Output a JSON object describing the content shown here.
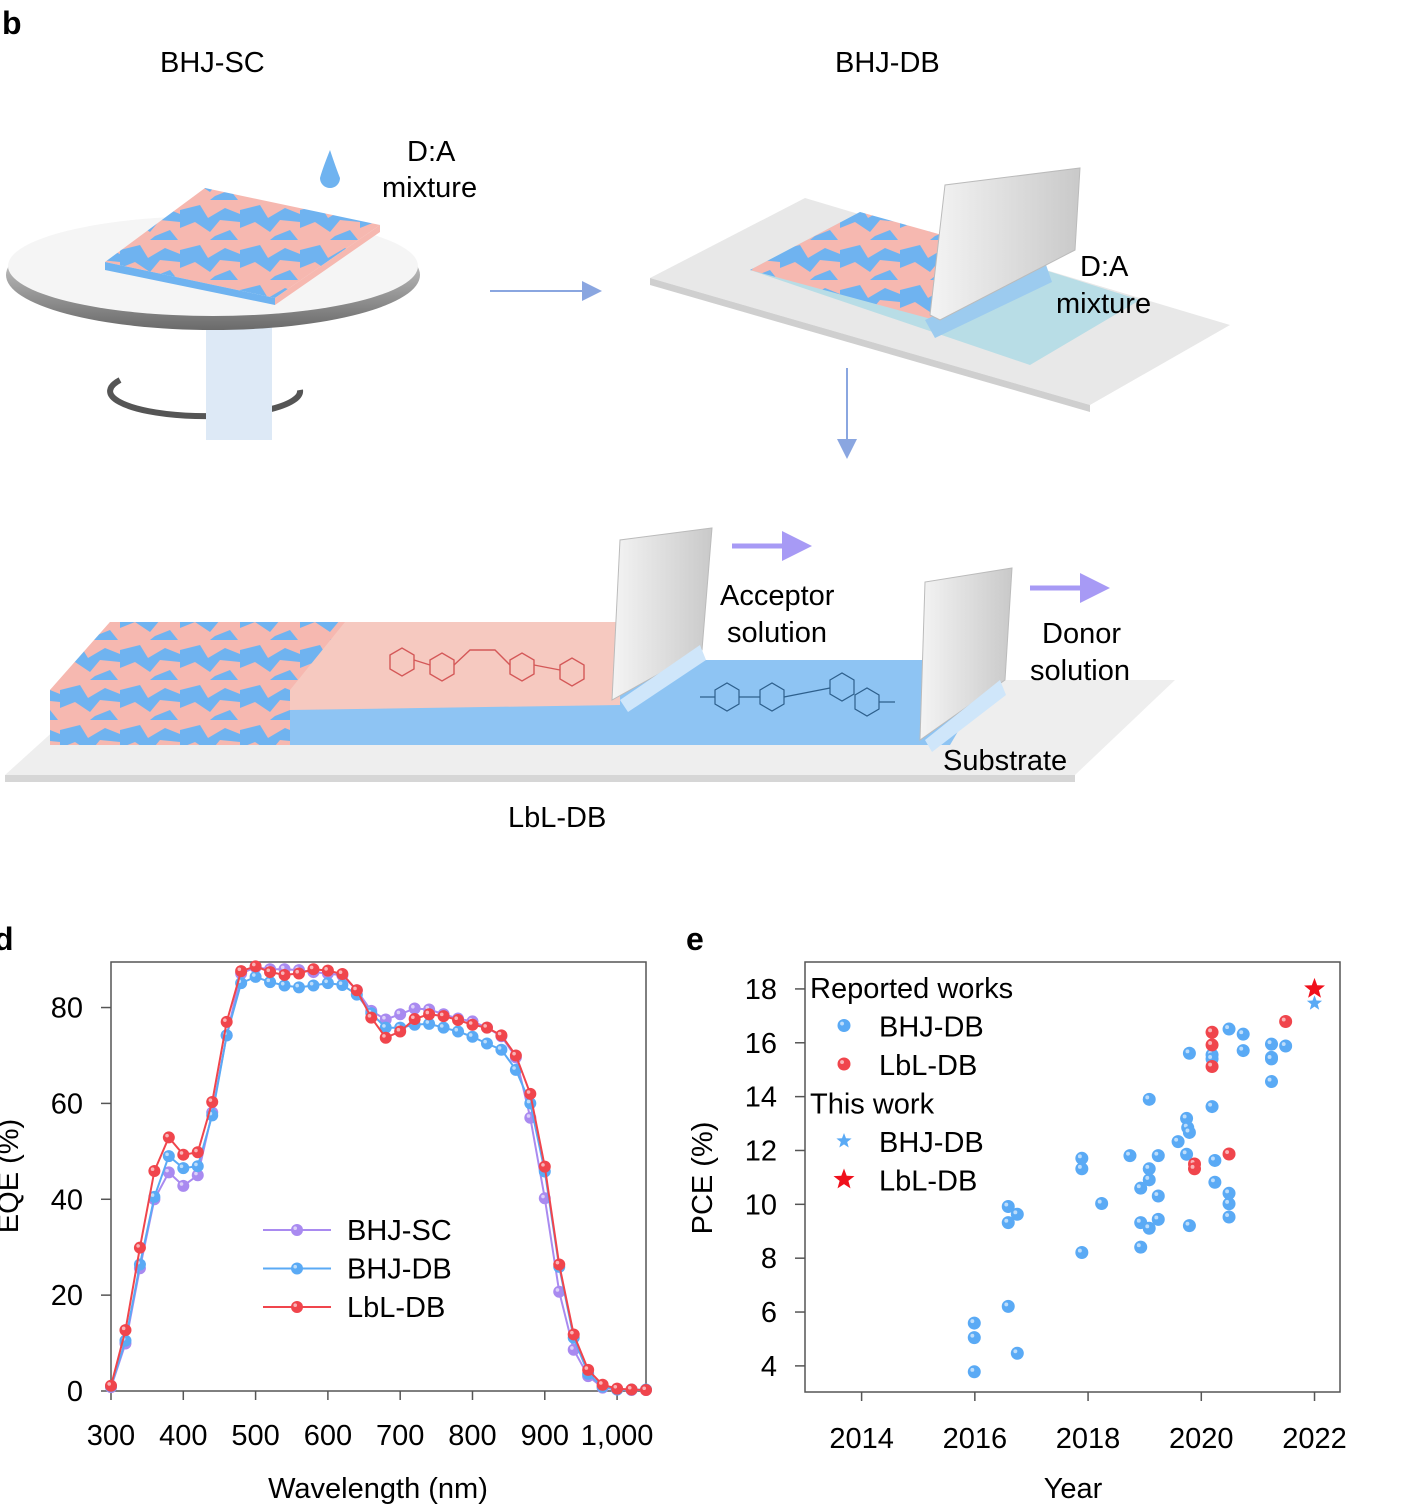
{
  "panels": {
    "b": "b",
    "d": "d",
    "e": "e"
  },
  "diagram": {
    "bhj_sc_title": "BHJ-SC",
    "bhj_db_title": "BHJ-DB",
    "lbl_db_title": "LbL-DB",
    "mixture_1": [
      "D:A",
      "mixture"
    ],
    "mixture_2": [
      "D:A",
      "mixture"
    ],
    "acceptor": [
      "Acceptor",
      "solution"
    ],
    "donor": [
      "Donor",
      "solution"
    ],
    "substrate": "Substrate",
    "colors": {
      "donor": "#6fb3f0",
      "acceptor": "#f6b8b0",
      "arrow": "#8aa6e0",
      "arrow_purple": "#a79af5"
    }
  },
  "chart_data": [
    {
      "type": "line",
      "panel": "d",
      "xlabel": "Wavelength (nm)",
      "ylabel": "EQE (%)",
      "xlim": [
        300,
        1040
      ],
      "ylim": [
        0,
        89.5
      ],
      "xticks": [
        300,
        400,
        500,
        600,
        700,
        800,
        900,
        1000
      ],
      "xtick_labels": [
        "300",
        "400",
        "500",
        "600",
        "700",
        "800",
        "900",
        "1,000"
      ],
      "yticks": [
        0,
        20,
        40,
        60,
        80
      ],
      "ytick_labels": [
        "0",
        "20",
        "40",
        "60",
        "80"
      ],
      "grid": false,
      "legend": "center-bottom",
      "x": [
        300,
        320,
        340,
        360,
        380,
        400,
        420,
        440,
        460,
        480,
        500,
        520,
        540,
        560,
        580,
        600,
        620,
        640,
        660,
        680,
        700,
        720,
        740,
        760,
        780,
        800,
        820,
        840,
        860,
        880,
        900,
        920,
        940,
        960,
        980,
        1000,
        1020,
        1040
      ],
      "series": [
        {
          "name": "BHJ-SC",
          "color": "#a98af0",
          "values": [
            0.8,
            9.9,
            25.6,
            40.0,
            45.6,
            42.8,
            45.0,
            58.1,
            74.2,
            87.1,
            88.4,
            88.0,
            88.0,
            87.8,
            87.4,
            87.1,
            86.7,
            83.6,
            79.3,
            77.5,
            78.6,
            79.8,
            79.6,
            78.6,
            77.7,
            77.1,
            75.8,
            74.0,
            69.6,
            57.0,
            40.2,
            20.7,
            8.6,
            3.1,
            0.7,
            0.3,
            0.2,
            0.2
          ]
        },
        {
          "name": "BHJ-DB",
          "color": "#5aaaf5",
          "values": [
            1.0,
            10.5,
            26.4,
            40.5,
            49.0,
            46.5,
            46.9,
            57.5,
            74.2,
            85.1,
            86.4,
            85.3,
            84.6,
            84.2,
            84.6,
            85.1,
            84.7,
            82.7,
            78.8,
            75.8,
            75.8,
            76.4,
            76.6,
            75.8,
            75.0,
            73.9,
            72.5,
            71.2,
            67.0,
            60.0,
            45.8,
            25.9,
            11.1,
            3.6,
            0.9,
            0.3,
            0.3,
            0.3
          ]
        },
        {
          "name": "LbL-DB",
          "color": "#f0454c",
          "values": [
            1.1,
            12.7,
            29.9,
            45.9,
            52.9,
            49.3,
            49.8,
            60.3,
            77.0,
            87.6,
            88.6,
            87.4,
            86.8,
            87.1,
            88.0,
            87.7,
            87.0,
            83.6,
            77.9,
            73.7,
            75.0,
            77.6,
            78.6,
            78.2,
            77.4,
            76.4,
            75.8,
            74.2,
            70.0,
            62.0,
            46.8,
            26.4,
            11.8,
            4.4,
            1.3,
            0.5,
            0.3,
            0.2
          ]
        }
      ]
    },
    {
      "type": "scatter",
      "panel": "e",
      "xlabel": "Year",
      "ylabel": "PCE (%)",
      "xlim": [
        2013,
        2022.45
      ],
      "ylim": [
        3.03,
        19.0
      ],
      "xticks": [
        2014,
        2016,
        2018,
        2020,
        2022
      ],
      "xtick_labels": [
        "2014",
        "2016",
        "2018",
        "2020",
        "2022"
      ],
      "yticks": [
        4,
        6,
        8,
        10,
        12,
        14,
        16,
        18
      ],
      "ytick_labels": [
        "4",
        "6",
        "8",
        "10",
        "12",
        "14",
        "16",
        "18"
      ],
      "grid": false,
      "legend": "top-left",
      "legend_groups": [
        {
          "title": "Reported works",
          "entries": [
            {
              "name": "BHJ-DB",
              "marker": "circle",
              "color": "#5aaaf5"
            },
            {
              "name": "LbL-DB",
              "marker": "circle",
              "color": "#f0454c"
            }
          ]
        },
        {
          "title": "This work",
          "entries": [
            {
              "name": "BHJ-DB",
              "marker": "star",
              "color": "#5aaaf5"
            },
            {
              "name": "LbL-DB",
              "marker": "star",
              "color": "#f0101c"
            }
          ]
        }
      ],
      "series": [
        {
          "name": "Reported works BHJ-DB",
          "marker": "circle",
          "color": "#5aaaf5",
          "points": [
            [
              2020.49,
              16.51
            ],
            [
              2020.74,
              16.32
            ],
            [
              2019.79,
              15.61
            ],
            [
              2020.19,
              15.55
            ],
            [
              2020.19,
              15.4
            ],
            [
              2020.74,
              15.71
            ],
            [
              2021.24,
              15.95
            ],
            [
              2021.24,
              15.46
            ],
            [
              2021.24,
              15.4
            ],
            [
              2021.49,
              15.88
            ],
            [
              2021.24,
              14.56
            ],
            [
              2019.08,
              13.9
            ],
            [
              2020.19,
              13.63
            ],
            [
              2019.74,
              13.19
            ],
            [
              2019.76,
              12.85
            ],
            [
              2019.79,
              12.67
            ],
            [
              2019.59,
              12.33
            ],
            [
              2019.74,
              11.86
            ],
            [
              2020.24,
              11.63
            ],
            [
              2018.74,
              11.81
            ],
            [
              2019.24,
              11.81
            ],
            [
              2017.89,
              11.71
            ],
            [
              2017.89,
              11.32
            ],
            [
              2019.08,
              11.32
            ],
            [
              2019.08,
              10.91
            ],
            [
              2018.93,
              10.6
            ],
            [
              2020.24,
              10.82
            ],
            [
              2019.24,
              10.31
            ],
            [
              2018.24,
              10.03
            ],
            [
              2020.49,
              10.41
            ],
            [
              2020.49,
              10.02
            ],
            [
              2020.49,
              9.53
            ],
            [
              2016.59,
              9.92
            ],
            [
              2016.75,
              9.63
            ],
            [
              2016.59,
              9.32
            ],
            [
              2018.93,
              9.32
            ],
            [
              2019.08,
              9.11
            ],
            [
              2019.24,
              9.44
            ],
            [
              2019.79,
              9.21
            ],
            [
              2017.89,
              8.21
            ],
            [
              2018.93,
              8.41
            ],
            [
              2016.59,
              6.21
            ],
            [
              2015.99,
              5.59
            ],
            [
              2015.99,
              5.05
            ],
            [
              2016.75,
              4.47
            ],
            [
              2015.99,
              3.78
            ]
          ]
        },
        {
          "name": "Reported works LbL-DB",
          "marker": "circle",
          "color": "#f0454c",
          "points": [
            [
              2020.19,
              16.39
            ],
            [
              2020.19,
              15.92
            ],
            [
              2020.19,
              15.12
            ],
            [
              2021.49,
              16.79
            ],
            [
              2020.49,
              11.87
            ],
            [
              2019.88,
              11.5
            ],
            [
              2019.88,
              11.32
            ]
          ]
        },
        {
          "name": "This work BHJ-DB",
          "marker": "star",
          "color": "#5aaaf5",
          "points": [
            [
              2022,
              17.47
            ]
          ]
        },
        {
          "name": "This work LbL-DB",
          "marker": "star",
          "color": "#f0101c",
          "points": [
            [
              2022,
              18.0
            ]
          ]
        }
      ]
    }
  ]
}
